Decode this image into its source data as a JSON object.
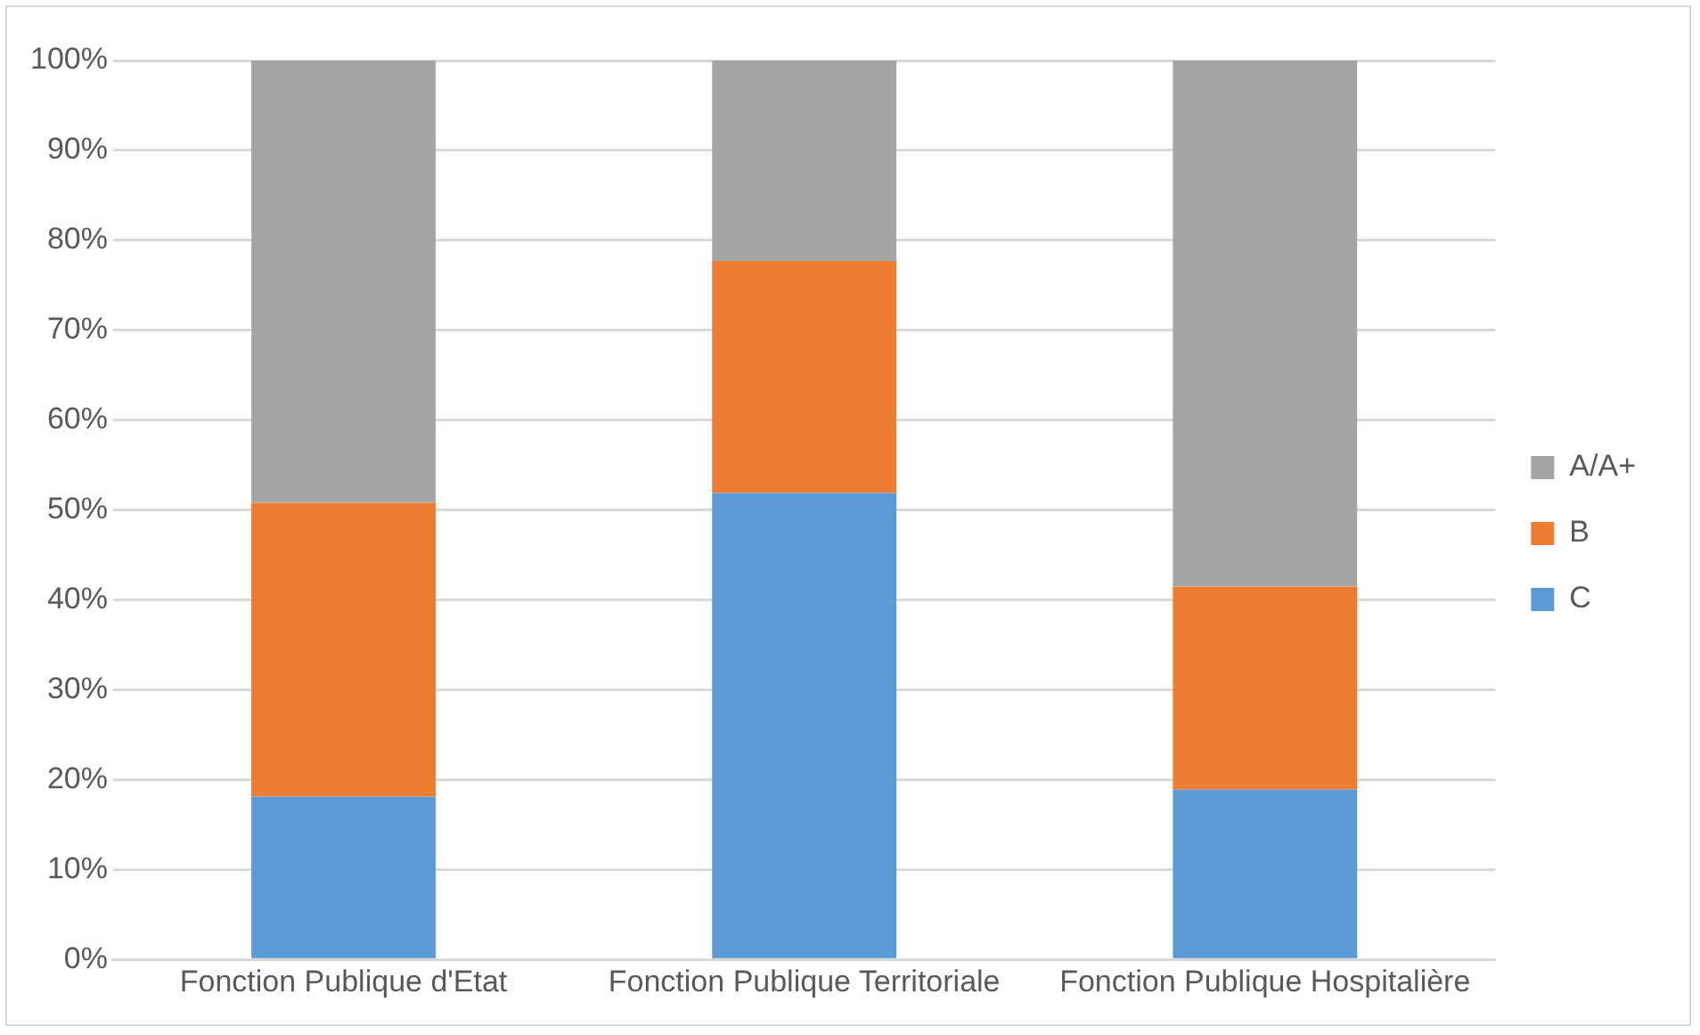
{
  "chart_data": {
    "type": "bar",
    "stacked": true,
    "categories": [
      "Fonction Publique d'Etat",
      "Fonction Publique Territoriale",
      "Fonction Publique Hospitalière"
    ],
    "series": [
      {
        "name": "C",
        "color": "#5b9bd5",
        "values": [
          18.1,
          51.9,
          18.9
        ]
      },
      {
        "name": "B",
        "color": "#ed7d31",
        "values": [
          32.7,
          25.8,
          22.6
        ]
      },
      {
        "name": "A/A+",
        "color": "#a5a5a5",
        "values": [
          49.2,
          22.3,
          58.5
        ]
      }
    ],
    "ylim": [
      0,
      100
    ],
    "yticks": [
      {
        "value": 0,
        "label": "0%"
      },
      {
        "value": 10,
        "label": "10%"
      },
      {
        "value": 20,
        "label": "20%"
      },
      {
        "value": 30,
        "label": "30%"
      },
      {
        "value": 40,
        "label": "40%"
      },
      {
        "value": 50,
        "label": "50%"
      },
      {
        "value": 60,
        "label": "60%"
      },
      {
        "value": 70,
        "label": "70%"
      },
      {
        "value": 80,
        "label": "80%"
      },
      {
        "value": 90,
        "label": "90%"
      },
      {
        "value": 100,
        "label": "100%"
      }
    ],
    "grid": "y",
    "legend": "right"
  }
}
